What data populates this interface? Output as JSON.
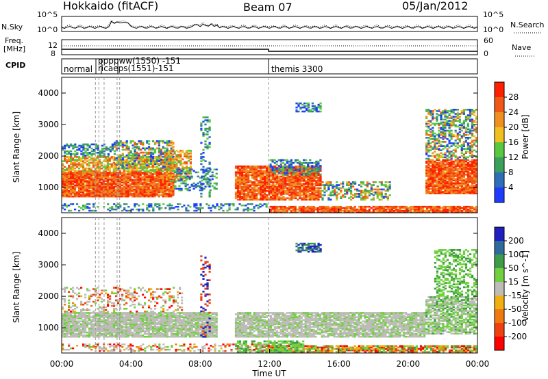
{
  "header": {
    "station": "Hokkaido (fitACF)",
    "beam": "Beam 07",
    "date": "05/Jan/2012"
  },
  "side_labels": {
    "nsky": "N.Sky",
    "nsky_ticks": [
      "10^5",
      "10^0"
    ],
    "nsearch": "N.Search",
    "nsearch_ticks": [
      "10^5",
      "10^0"
    ],
    "freq": "Freq.",
    "freq_unit": "[MHz]",
    "freq_ticks": [
      "12",
      "8"
    ],
    "nave": "Nave",
    "nave_ticks": [
      "60",
      "0"
    ],
    "cpid": "CPID"
  },
  "cpid": {
    "labels": [
      "normal",
      "themis 3300"
    ],
    "overlap_text": "ppppww(1550) -151",
    "overlap_text2": "ricaeps(1551)-151"
  },
  "colors": {
    "power": [
      "#1e3cff",
      "#2f6fb8",
      "#3aa05a",
      "#58c840",
      "#f0c020",
      "#f09020",
      "#f05818",
      "#ff2000"
    ],
    "velocity": [
      "#2020c0",
      "#2e6a9a",
      "#3f9a4a",
      "#70d040",
      "#bebcb8",
      "#f0b010",
      "#f07a10",
      "#f04010",
      "#ff0000"
    ]
  },
  "chart_data": [
    {
      "type": "heatmap",
      "title": "",
      "xlabel": "",
      "ylabel": "Slant Range [km]",
      "x_ticks": [
        "00:00",
        "04:00",
        "08:00",
        "12:00",
        "16:00",
        "20:00",
        "00:00"
      ],
      "y_ticks": [
        "1000",
        "2000",
        "3000",
        "4000"
      ],
      "ylim": [
        200,
        4500
      ],
      "colorbar": {
        "label": "Power [dB]",
        "ticks": [
          "4",
          "8",
          "12",
          "16",
          "20",
          "24",
          "28"
        ],
        "range": [
          0,
          32
        ]
      },
      "grid": false
    },
    {
      "type": "heatmap",
      "title": "",
      "xlabel": "Time UT",
      "ylabel": "Slant Range [km]",
      "x_ticks": [
        "00:00",
        "04:00",
        "08:00",
        "12:00",
        "16:00",
        "20:00",
        "00:00"
      ],
      "y_ticks": [
        "1000",
        "2000",
        "3000",
        "4000"
      ],
      "ylim": [
        200,
        4500
      ],
      "colorbar": {
        "label": "Velocity [m s^-1]",
        "ticks": [
          "200",
          "100",
          "50",
          "15",
          "-15",
          "-50",
          "-100",
          "-200"
        ],
        "range": [
          -250,
          250
        ]
      },
      "grid": false
    }
  ]
}
